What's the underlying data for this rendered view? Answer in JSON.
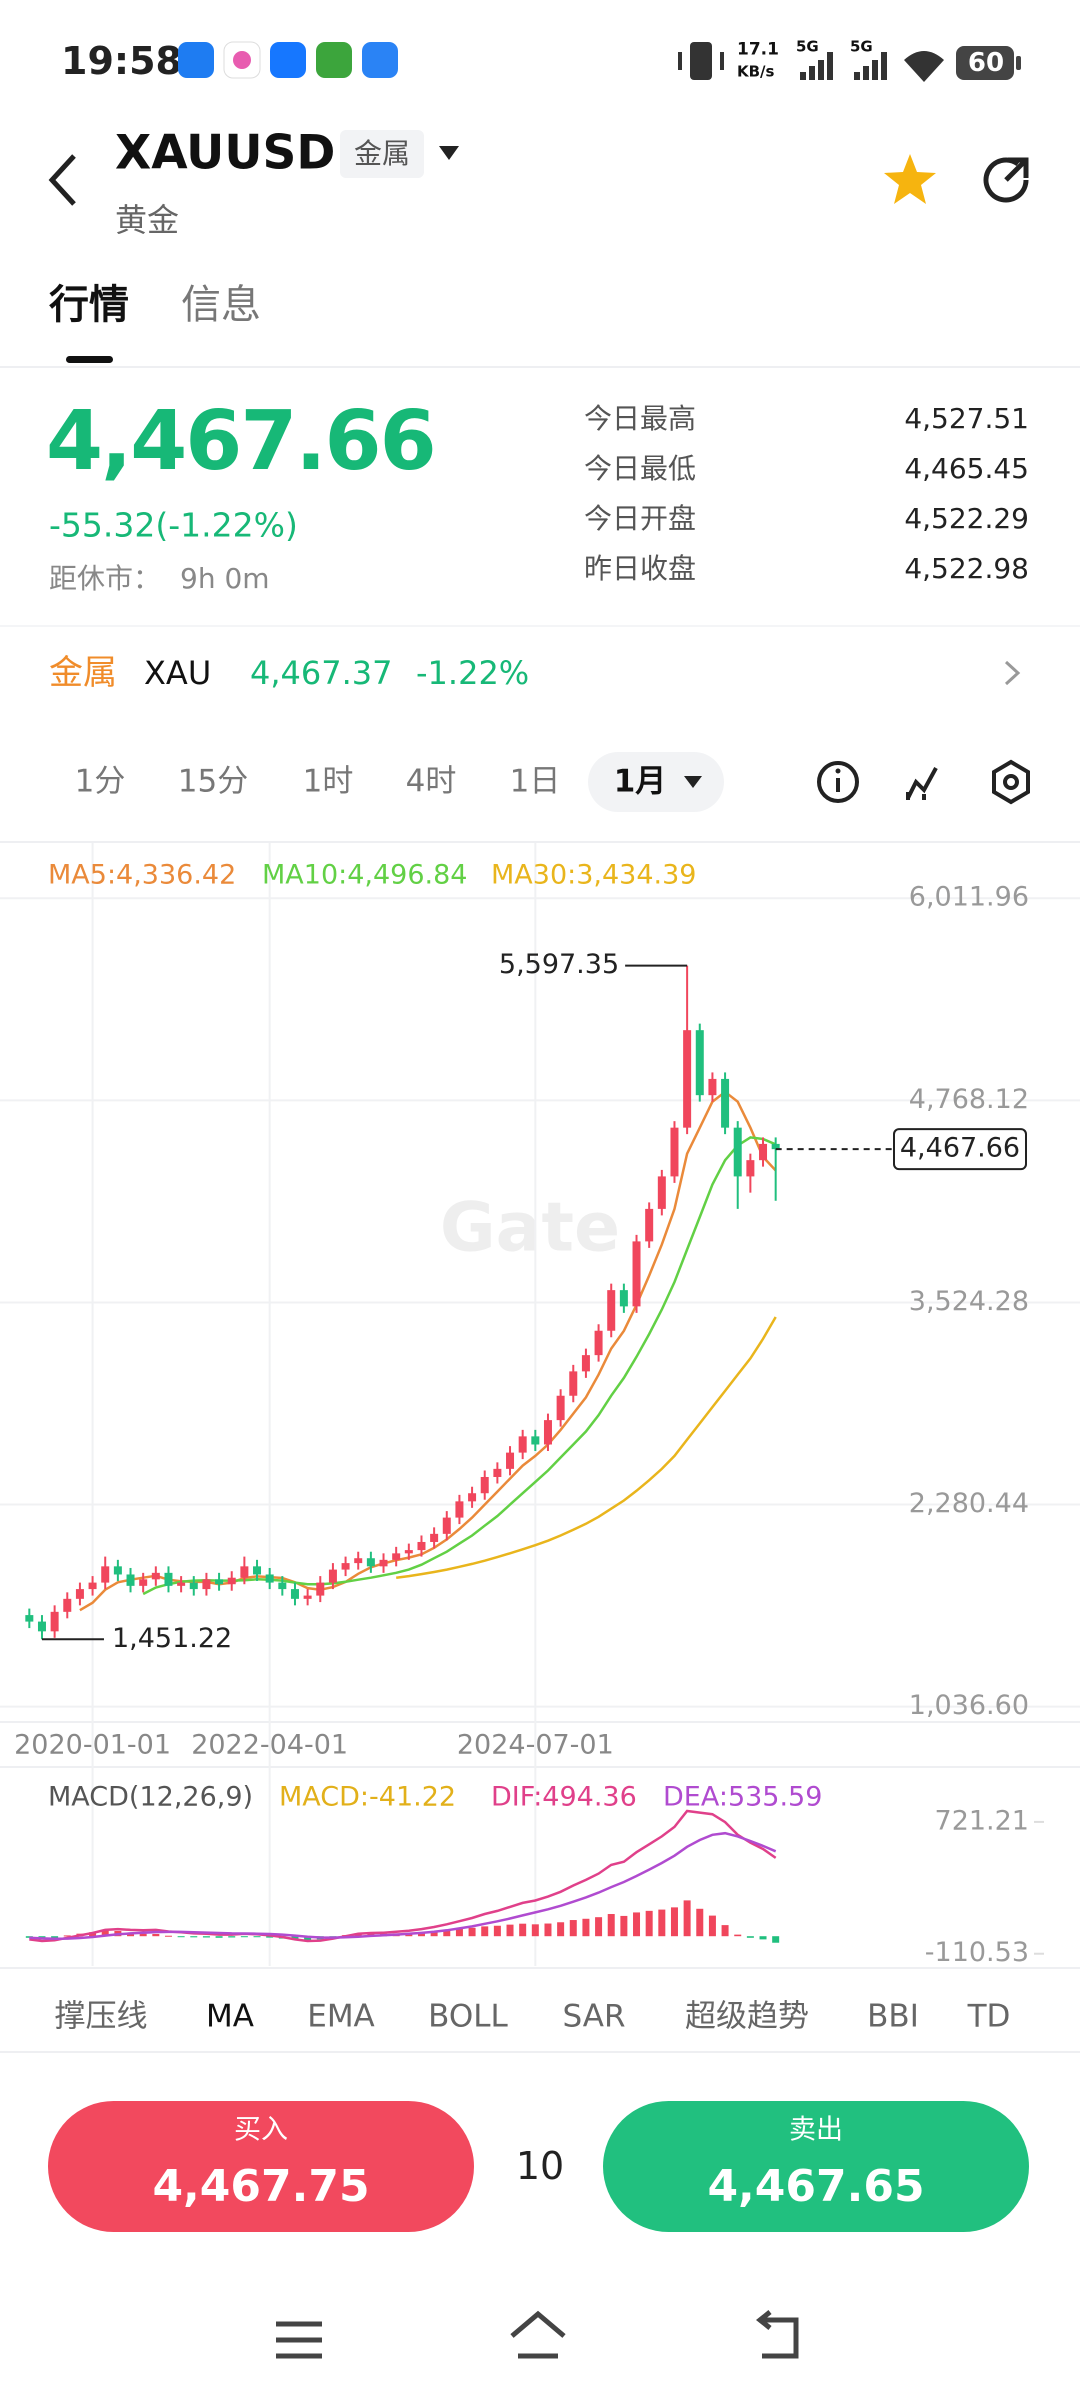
{
  "status_bar": {
    "time": "19:58",
    "net_speed": "17.1",
    "net_unit": "KB/s",
    "signal_1": "5G",
    "signal_2": "5G",
    "battery": "60"
  },
  "header": {
    "symbol": "XAUUSD",
    "tag": "金属",
    "name": "黄金"
  },
  "tabs": [
    "行情",
    "信息"
  ],
  "quote": {
    "price": "4,467.66",
    "change": "-55.32(-1.22%)",
    "close_label": "距休市：",
    "close_in": "9h 0m",
    "stats": [
      [
        "今日最高",
        "4,527.51"
      ],
      [
        "今日最低",
        "4,465.45"
      ],
      [
        "今日开盘",
        "4,522.29"
      ],
      [
        "昨日收盘",
        "4,522.98"
      ]
    ]
  },
  "related": {
    "sector": "金属",
    "symbol": "XAU",
    "price": "4,467.37",
    "change": "-1.22%"
  },
  "intervals": [
    "1分",
    "15分",
    "1时",
    "4时",
    "1日",
    "1月"
  ],
  "chart_data": [
    {
      "type": "candlestick",
      "watermark": "Gate",
      "categories": [
        null,
        null,
        null,
        null,
        null,
        "2020-01-01",
        null,
        null,
        null,
        null,
        null,
        null,
        null,
        null,
        null,
        null,
        null,
        null,
        null,
        "2022-04-01",
        null,
        null,
        null,
        null,
        null,
        null,
        null,
        null,
        null,
        null,
        null,
        null,
        null,
        null,
        null,
        null,
        null,
        null,
        null,
        null,
        "2024-07-01",
        null,
        null,
        null,
        null,
        null,
        null,
        null,
        null,
        null,
        null,
        null,
        null,
        null,
        null,
        null,
        null,
        null,
        null,
        null
      ],
      "open": [
        1600,
        1560,
        1500,
        1620,
        1700,
        1760,
        1800,
        1900,
        1850,
        1780,
        1820,
        1860,
        1780,
        1800,
        1760,
        1820,
        1790,
        1830,
        1900,
        1850,
        1800,
        1760,
        1700,
        1720,
        1800,
        1880,
        1920,
        1950,
        1900,
        1940,
        1980,
        2000,
        2050,
        2100,
        2200,
        2300,
        2350,
        2450,
        2500,
        2600,
        2700,
        2650,
        2800,
        2950,
        3100,
        3200,
        3350,
        3600,
        3500,
        3900,
        4100,
        4300,
        4600,
        5200,
        4800,
        4900,
        4600,
        4300,
        4400,
        4500
      ],
      "high": [
        1640,
        1600,
        1660,
        1740,
        1800,
        1840,
        1960,
        1940,
        1890,
        1860,
        1900,
        1900,
        1840,
        1840,
        1860,
        1860,
        1870,
        1960,
        1940,
        1890,
        1840,
        1800,
        1760,
        1840,
        1920,
        1960,
        1990,
        1990,
        1980,
        2020,
        2040,
        2090,
        2140,
        2240,
        2340,
        2390,
        2490,
        2540,
        2640,
        2740,
        2740,
        2840,
        2990,
        3140,
        3240,
        3390,
        3640,
        3640,
        3940,
        4140,
        4340,
        4640,
        5597.35,
        5240,
        4940,
        4940,
        4640,
        4440,
        4540,
        4540
      ],
      "low": [
        1520,
        1451.22,
        1460,
        1580,
        1660,
        1720,
        1760,
        1810,
        1740,
        1740,
        1780,
        1740,
        1740,
        1720,
        1720,
        1750,
        1750,
        1790,
        1810,
        1760,
        1720,
        1660,
        1660,
        1680,
        1760,
        1840,
        1880,
        1860,
        1860,
        1900,
        1940,
        1960,
        2010,
        2060,
        2160,
        2260,
        2310,
        2410,
        2460,
        2560,
        2610,
        2610,
        2760,
        2910,
        3060,
        3160,
        3310,
        3460,
        3460,
        3860,
        4060,
        4260,
        4560,
        4760,
        4760,
        4560,
        4100,
        4200,
        4360,
        4150
      ],
      "close": [
        1560,
        1500,
        1620,
        1700,
        1760,
        1800,
        1900,
        1850,
        1780,
        1820,
        1860,
        1780,
        1800,
        1760,
        1820,
        1790,
        1830,
        1900,
        1850,
        1800,
        1760,
        1700,
        1720,
        1800,
        1880,
        1920,
        1950,
        1900,
        1940,
        1980,
        2000,
        2050,
        2100,
        2200,
        2300,
        2350,
        2450,
        2500,
        2600,
        2700,
        2650,
        2800,
        2950,
        3100,
        3200,
        3350,
        3600,
        3500,
        3900,
        4100,
        4300,
        4600,
        5200,
        4800,
        4900,
        4600,
        4300,
        4400,
        4500,
        4467.66
      ],
      "up_color": "#f0465c",
      "down_color": "#20bf7e",
      "series": [
        {
          "name": "MA5:4,336.42",
          "color": "#ea8a3a",
          "values": [
            null,
            null,
            null,
            null,
            1630,
            1676,
            1756,
            1802,
            1818,
            1830,
            1842,
            1818,
            1808,
            1804,
            1804,
            1790,
            1800,
            1828,
            1838,
            1834,
            1828,
            1802,
            1766,
            1756,
            1772,
            1804,
            1854,
            1894,
            1918,
            1938,
            1954,
            1974,
            2014,
            2066,
            2130,
            2200,
            2280,
            2360,
            2440,
            2520,
            2580,
            2650,
            2740,
            2840,
            2940,
            3080,
            3240,
            3350,
            3510,
            3690,
            3880,
            4100,
            4440,
            4600,
            4760,
            4820,
            4760,
            4600,
            4420,
            4336.42
          ]
        },
        {
          "name": "MA10:4,496.84",
          "color": "#62d045",
          "values": [
            null,
            null,
            null,
            null,
            null,
            null,
            null,
            null,
            null,
            1730,
            1770,
            1790,
            1805,
            1812,
            1815,
            1812,
            1812,
            1815,
            1820,
            1818,
            1812,
            1800,
            1790,
            1790,
            1795,
            1805,
            1818,
            1830,
            1845,
            1860,
            1880,
            1910,
            1950,
            1990,
            2040,
            2090,
            2150,
            2210,
            2280,
            2350,
            2420,
            2490,
            2570,
            2650,
            2730,
            2830,
            2950,
            3060,
            3190,
            3330,
            3480,
            3650,
            3850,
            4050,
            4250,
            4400,
            4490,
            4540,
            4530,
            4496.84
          ]
        },
        {
          "name": "MA30:3,434.39",
          "color": "#e9b51c",
          "values": [
            null,
            null,
            null,
            null,
            null,
            null,
            null,
            null,
            null,
            null,
            null,
            null,
            null,
            null,
            null,
            null,
            null,
            null,
            null,
            null,
            null,
            null,
            null,
            null,
            null,
            null,
            null,
            null,
            null,
            1830,
            1840,
            1852,
            1865,
            1880,
            1897,
            1915,
            1935,
            1957,
            1980,
            2005,
            2030,
            2058,
            2090,
            2125,
            2162,
            2205,
            2255,
            2305,
            2365,
            2430,
            2500,
            2580,
            2680,
            2780,
            2880,
            2980,
            3080,
            3180,
            3300,
            3434.39
          ]
        }
      ],
      "ylim": [
        942,
        6352
      ],
      "yticks": [
        {
          "value": 6011.96,
          "label": "6,011.96"
        },
        {
          "value": 4768.12,
          "label": "4,768.12"
        },
        {
          "value": 3524.28,
          "label": "3,524.28"
        },
        {
          "value": 2280.44,
          "label": "2,280.44"
        },
        {
          "value": 1036.6,
          "label": "1,036.60"
        }
      ],
      "grid": true,
      "max_label": {
        "value": 5597.35,
        "label": "5,597.35"
      },
      "min_label": {
        "value": 1451.22,
        "label": "1,451.22"
      },
      "last_price": {
        "value": 4467.66,
        "label": "4,467.66"
      }
    },
    {
      "type": "macd",
      "title": "MACD(12,26,9)",
      "series": [
        {
          "name": "MACD:-41.22",
          "color": "#e2b01a",
          "up_color": "#f0465c",
          "down_color": "#20bf7e",
          "values": [
            -10,
            -16,
            -9,
            5,
            16,
            25,
            36,
            33,
            22,
            16,
            14,
            3,
            -2,
            -7,
            -8,
            -10,
            -8,
            -2,
            -4,
            -9,
            -15,
            -24,
            -27,
            -20,
            -6,
            7,
            18,
            18,
            16,
            18,
            20,
            24,
            30,
            38,
            46,
            53,
            62,
            66,
            73,
            79,
            75,
            80,
            88,
            102,
            110,
            120,
            140,
            128,
            150,
            160,
            168,
            182,
            226,
            173,
            130,
            70,
            10,
            -10,
            -20,
            -41.22
          ]
        },
        {
          "name": "DIF:494.36",
          "color": "#e0408a",
          "values": [
            -20,
            -30,
            -25,
            -10,
            5,
            20,
            40,
            45,
            40,
            38,
            40,
            30,
            25,
            18,
            15,
            10,
            10,
            15,
            12,
            5,
            -5,
            -20,
            -30,
            -28,
            -15,
            0,
            15,
            20,
            22,
            28,
            35,
            45,
            58,
            75,
            95,
            115,
            140,
            160,
            185,
            210,
            225,
            250,
            280,
            320,
            355,
            395,
            450,
            470,
            530,
            580,
            630,
            690,
            790,
            780,
            770,
            720,
            640,
            590,
            550,
            494.36
          ]
        },
        {
          "name": "DEA:535.59",
          "color": "#b04bd0",
          "values": [
            -10,
            -14,
            -16,
            -15,
            -11,
            -5,
            4,
            12,
            18,
            22,
            26,
            27,
            27,
            25,
            23,
            20,
            18,
            17,
            16,
            14,
            10,
            4,
            -3,
            -8,
            -9,
            -7,
            -3,
            2,
            6,
            10,
            15,
            21,
            28,
            37,
            49,
            62,
            78,
            94,
            112,
            131,
            150,
            170,
            192,
            218,
            245,
            275,
            310,
            342,
            380,
            420,
            462,
            508,
            564,
            607,
            640,
            650,
            630,
            600,
            570,
            535.59
          ]
        }
      ],
      "ylim": [
        -188,
        992
      ],
      "yticks": [
        721.21,
        -110.53
      ]
    }
  ],
  "indicators": [
    "撑压线",
    "MA",
    "EMA",
    "BOLL",
    "SAR",
    "超级趋势",
    "BBI",
    "TD"
  ],
  "trade": {
    "buy_label": "买入",
    "buy_price": "4,467.75",
    "quantity": "10",
    "sell_label": "卖出",
    "sell_price": "4,467.65"
  }
}
